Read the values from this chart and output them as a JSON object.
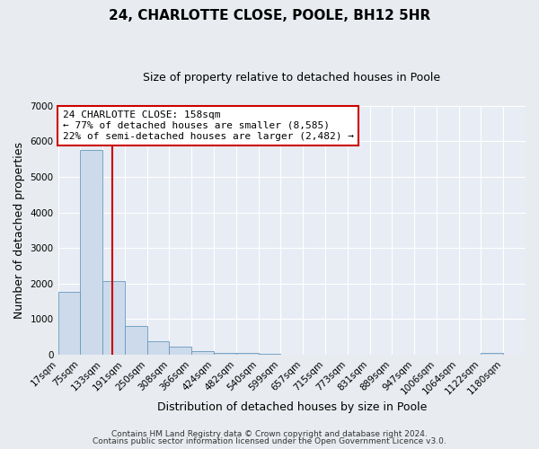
{
  "title": "24, CHARLOTTE CLOSE, POOLE, BH12 5HR",
  "subtitle": "Size of property relative to detached houses in Poole",
  "xlabel": "Distribution of detached houses by size in Poole",
  "ylabel": "Number of detached properties",
  "bar_values": [
    1780,
    5750,
    2060,
    800,
    370,
    230,
    110,
    60,
    40,
    30,
    0,
    0,
    0,
    0,
    0,
    0,
    0,
    0,
    0,
    50,
    0
  ],
  "bar_labels": [
    "17sqm",
    "75sqm",
    "133sqm",
    "191sqm",
    "250sqm",
    "308sqm",
    "366sqm",
    "424sqm",
    "482sqm",
    "540sqm",
    "599sqm",
    "657sqm",
    "715sqm",
    "773sqm",
    "831sqm",
    "889sqm",
    "947sqm",
    "1006sqm",
    "1064sqm",
    "1122sqm",
    "1180sqm"
  ],
  "bar_color": "#cddaeb",
  "bar_edge_color": "#6899be",
  "vline_x": 2.42,
  "vline_color": "#cc0000",
  "annotation_title": "24 CHARLOTTE CLOSE: 158sqm",
  "annotation_line1": "← 77% of detached houses are smaller (8,585)",
  "annotation_line2": "22% of semi-detached houses are larger (2,482) →",
  "annotation_box_facecolor": "#ffffff",
  "annotation_box_edgecolor": "#cc0000",
  "ylim": [
    0,
    7000
  ],
  "yticks": [
    0,
    1000,
    2000,
    3000,
    4000,
    5000,
    6000,
    7000
  ],
  "footer1": "Contains HM Land Registry data © Crown copyright and database right 2024.",
  "footer2": "Contains public sector information licensed under the Open Government Licence v3.0.",
  "fig_facecolor": "#e8ecf0",
  "plot_facecolor": "#e8ecf4",
  "grid_color": "#ffffff",
  "title_fontsize": 11,
  "subtitle_fontsize": 9,
  "tick_fontsize": 7.5,
  "ylabel_fontsize": 9,
  "xlabel_fontsize": 9
}
